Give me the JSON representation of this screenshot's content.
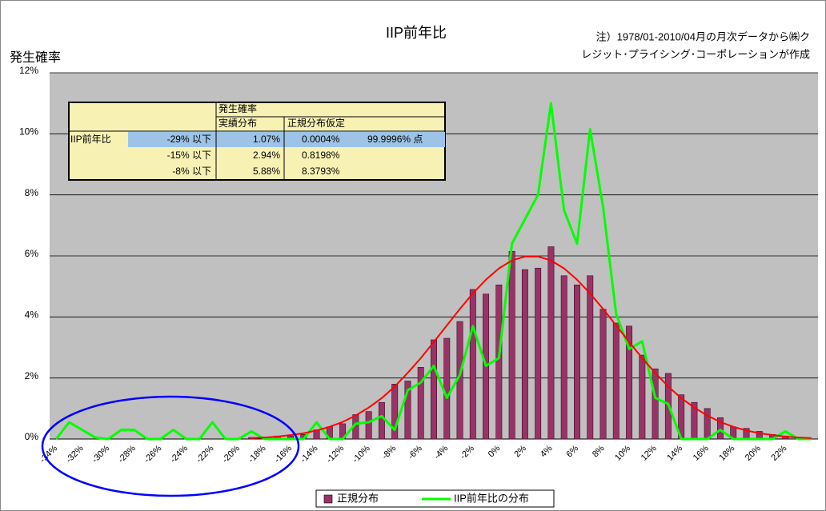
{
  "chart_data": {
    "type": "bar",
    "title": "IIP前年比",
    "note": [
      "注）1978/01-2010/04月の月次データから㈱ク",
      "レジット･プライシング･コーポレーションが作成"
    ],
    "y_label": "発生確率",
    "categories": [
      "-34%",
      null,
      "-32%",
      null,
      "-30%",
      null,
      "-28%",
      null,
      "-26%",
      null,
      "-24%",
      null,
      "-22%",
      null,
      "-20%",
      null,
      "-18%",
      null,
      "-16%",
      null,
      "-14%",
      null,
      "-12%",
      null,
      "-10%",
      null,
      "-8%",
      null,
      "-6%",
      null,
      "-4%",
      null,
      "-2%",
      null,
      "0%",
      null,
      "2%",
      null,
      "4%",
      null,
      "6%",
      null,
      "8%",
      null,
      "10%",
      null,
      "12%",
      null,
      "14%",
      null,
      "16%",
      null,
      "18%",
      null,
      "20%",
      null,
      "22%",
      null,
      null
    ],
    "series": [
      {
        "name": "正規分布",
        "type": "bar",
        "color": "#993366",
        "values": [
          0,
          0,
          0,
          0,
          0,
          0,
          0,
          0,
          0,
          0,
          0,
          0,
          0,
          0,
          0,
          0.05,
          0.05,
          0.1,
          0.1,
          0.15,
          0.3,
          0.4,
          0.5,
          0.8,
          0.9,
          1.2,
          1.8,
          1.9,
          2.35,
          3.25,
          3.3,
          3.85,
          4.9,
          4.75,
          5.05,
          6.15,
          5.55,
          5.6,
          6.3,
          5.35,
          5.05,
          5.35,
          4.25,
          3.8,
          3.7,
          2.75,
          2.3,
          2.15,
          1.45,
          1.2,
          1.0,
          0.7,
          0.4,
          0.35,
          0.25,
          0.15,
          0.1,
          0,
          0
        ]
      },
      {
        "name": "IIP前年比の分布",
        "type": "line",
        "color": "#00ff00",
        "values": [
          0,
          0.55,
          0.3,
          0.05,
          0,
          0.3,
          0.3,
          0,
          0,
          0.3,
          0,
          0,
          0.55,
          0,
          0,
          0.25,
          0,
          0,
          0,
          0,
          0.55,
          0,
          0,
          0.5,
          0.55,
          0.75,
          0.3,
          1.6,
          1.85,
          2.4,
          1.35,
          2.1,
          3.7,
          2.4,
          2.65,
          6.4,
          7.2,
          8.0,
          11.0,
          7.5,
          6.4,
          10.15,
          7.6,
          4.1,
          2.95,
          3.2,
          1.35,
          1.15,
          0,
          0,
          0,
          0.3,
          0,
          0,
          0,
          0,
          0.25,
          0,
          0
        ]
      },
      {
        "type": "line",
        "color": "#ff0000",
        "values": [
          null,
          null,
          null,
          null,
          null,
          null,
          null,
          null,
          null,
          null,
          null,
          null,
          null,
          null,
          null,
          0.03,
          0.05,
          0.08,
          0.13,
          0.19,
          0.28,
          0.4,
          0.56,
          0.77,
          1.03,
          1.34,
          1.72,
          2.17,
          2.65,
          3.18,
          3.72,
          4.26,
          4.77,
          5.22,
          5.59,
          5.85,
          5.98,
          5.98,
          5.85,
          5.59,
          5.22,
          4.77,
          4.26,
          3.72,
          3.18,
          2.65,
          2.17,
          1.72,
          1.34,
          1.03,
          0.77,
          0.56,
          0.4,
          0.28,
          0.19,
          0.13,
          0.08,
          0.05,
          0.03
        ]
      }
    ],
    "ylim": [
      0,
      12
    ],
    "yticks": [
      {
        "value": 0,
        "label": "0%"
      },
      {
        "value": 2,
        "label": "2%"
      },
      {
        "value": 4,
        "label": "4%"
      },
      {
        "value": 6,
        "label": "6%"
      },
      {
        "value": 8,
        "label": "8%"
      },
      {
        "value": 10,
        "label": "10%"
      },
      {
        "value": 12,
        "label": "12%"
      }
    ],
    "grid": true,
    "legend": "bottom"
  },
  "table": {
    "super_header": "発生確率",
    "headers": [
      "実績分布",
      "正規分布仮定"
    ],
    "row_label": "IIP前年比",
    "rows": [
      {
        "threshold": "-29% 以下",
        "actual": "1.07%",
        "normal": "0.0004%",
        "note": "99.9996% 点"
      },
      {
        "threshold": "-15% 以下",
        "actual": "2.94%",
        "normal": "0.8198%"
      },
      {
        "threshold": "-8% 以下",
        "actual": "5.88%",
        "normal": "8.3793%"
      }
    ]
  }
}
